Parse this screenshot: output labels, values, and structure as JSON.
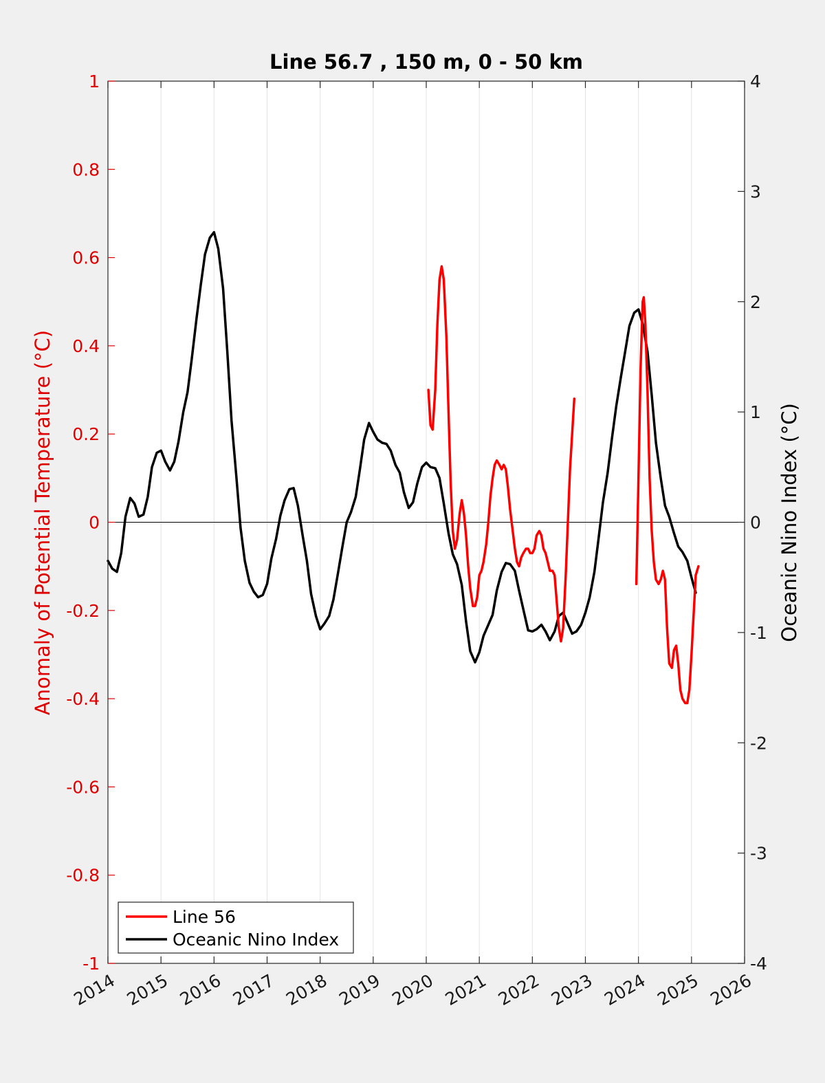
{
  "chart_data": {
    "type": "line",
    "title": "Line 56.7 , 150 m, 0 - 50 km",
    "ylabel_left": "Anomaly of Potential Temperature (°C)",
    "ylabel_right": "Oceanic Nino Index (°C)",
    "xlabel": "",
    "xlim": [
      2014,
      2026
    ],
    "ylim_left": [
      -1,
      1
    ],
    "ylim_right": [
      -4,
      4
    ],
    "x_ticks": [
      "2014",
      "2015",
      "2016",
      "2017",
      "2018",
      "2019",
      "2020",
      "2021",
      "2022",
      "2023",
      "2024",
      "2025",
      "2026"
    ],
    "y_left_ticks": [
      "1",
      "0.8",
      "0.6",
      "0.4",
      "0.2",
      "0",
      "-0.2",
      "-0.4",
      "-0.6",
      "-0.8",
      "-1"
    ],
    "y_right_ticks": [
      "4",
      "3",
      "2",
      "1",
      "0",
      "-1",
      "-2",
      "-3",
      "-4"
    ],
    "grid": "vertical",
    "legend_position": "bottom-left",
    "colors": {
      "line56": "#ff0000",
      "oni": "#000000",
      "left_axis": "#e00000",
      "right_axis": "#000000"
    },
    "series": [
      {
        "name": "Line 56",
        "axis": "left",
        "segments": [
          [
            [
              2020.04,
              0.3
            ],
            [
              2020.08,
              0.22
            ],
            [
              2020.12,
              0.21
            ],
            [
              2020.17,
              0.3
            ],
            [
              2020.21,
              0.45
            ],
            [
              2020.25,
              0.55
            ],
            [
              2020.29,
              0.58
            ],
            [
              2020.33,
              0.55
            ],
            [
              2020.38,
              0.42
            ],
            [
              2020.42,
              0.25
            ],
            [
              2020.46,
              0.09
            ],
            [
              2020.5,
              -0.02
            ],
            [
              2020.54,
              -0.06
            ],
            [
              2020.58,
              -0.04
            ],
            [
              2020.63,
              0.02
            ],
            [
              2020.67,
              0.05
            ],
            [
              2020.71,
              0.02
            ],
            [
              2020.75,
              -0.03
            ],
            [
              2020.79,
              -0.1
            ],
            [
              2020.83,
              -0.15
            ],
            [
              2020.88,
              -0.19
            ],
            [
              2020.92,
              -0.19
            ],
            [
              2020.96,
              -0.17
            ],
            [
              2021.0,
              -0.12
            ],
            [
              2021.04,
              -0.11
            ],
            [
              2021.08,
              -0.09
            ],
            [
              2021.13,
              -0.05
            ],
            [
              2021.17,
              0.0
            ],
            [
              2021.21,
              0.06
            ],
            [
              2021.25,
              0.1
            ],
            [
              2021.29,
              0.13
            ],
            [
              2021.33,
              0.14
            ],
            [
              2021.38,
              0.13
            ],
            [
              2021.42,
              0.12
            ],
            [
              2021.46,
              0.13
            ],
            [
              2021.5,
              0.12
            ],
            [
              2021.54,
              0.08
            ],
            [
              2021.58,
              0.03
            ],
            [
              2021.63,
              -0.02
            ],
            [
              2021.67,
              -0.06
            ],
            [
              2021.71,
              -0.09
            ],
            [
              2021.75,
              -0.1
            ],
            [
              2021.79,
              -0.08
            ],
            [
              2021.83,
              -0.07
            ],
            [
              2021.88,
              -0.06
            ],
            [
              2021.92,
              -0.06
            ],
            [
              2021.96,
              -0.07
            ],
            [
              2022.0,
              -0.07
            ],
            [
              2022.04,
              -0.06
            ],
            [
              2022.08,
              -0.03
            ],
            [
              2022.13,
              -0.02
            ],
            [
              2022.17,
              -0.03
            ],
            [
              2022.21,
              -0.06
            ],
            [
              2022.25,
              -0.07
            ],
            [
              2022.29,
              -0.09
            ],
            [
              2022.33,
              -0.11
            ],
            [
              2022.38,
              -0.11
            ],
            [
              2022.42,
              -0.12
            ],
            [
              2022.46,
              -0.18
            ],
            [
              2022.5,
              -0.24
            ],
            [
              2022.54,
              -0.27
            ],
            [
              2022.58,
              -0.24
            ],
            [
              2022.63,
              -0.12
            ],
            [
              2022.67,
              0.0
            ],
            [
              2022.71,
              0.12
            ],
            [
              2022.75,
              0.2
            ],
            [
              2022.79,
              0.28
            ]
          ],
          [
            [
              2023.96,
              -0.14
            ],
            [
              2024.0,
              0.1
            ],
            [
              2024.04,
              0.35
            ],
            [
              2024.08,
              0.5
            ],
            [
              2024.1,
              0.51
            ],
            [
              2024.13,
              0.45
            ],
            [
              2024.17,
              0.3
            ],
            [
              2024.21,
              0.1
            ],
            [
              2024.25,
              -0.02
            ],
            [
              2024.29,
              -0.09
            ],
            [
              2024.33,
              -0.13
            ],
            [
              2024.38,
              -0.14
            ],
            [
              2024.42,
              -0.13
            ],
            [
              2024.46,
              -0.11
            ],
            [
              2024.5,
              -0.13
            ],
            [
              2024.54,
              -0.24
            ],
            [
              2024.58,
              -0.32
            ],
            [
              2024.63,
              -0.33
            ],
            [
              2024.67,
              -0.29
            ],
            [
              2024.71,
              -0.28
            ],
            [
              2024.75,
              -0.32
            ],
            [
              2024.79,
              -0.38
            ],
            [
              2024.83,
              -0.4
            ],
            [
              2024.88,
              -0.41
            ],
            [
              2024.92,
              -0.41
            ],
            [
              2024.96,
              -0.38
            ],
            [
              2025.0,
              -0.3
            ],
            [
              2025.04,
              -0.21
            ],
            [
              2025.08,
              -0.12
            ],
            [
              2025.13,
              -0.1
            ]
          ]
        ]
      },
      {
        "name": "Oceanic Nino Index",
        "axis": "right",
        "segments": [
          [
            [
              2014.0,
              -0.35
            ],
            [
              2014.08,
              -0.42
            ],
            [
              2014.17,
              -0.45
            ],
            [
              2014.25,
              -0.28
            ],
            [
              2014.33,
              0.05
            ],
            [
              2014.42,
              0.22
            ],
            [
              2014.5,
              0.17
            ],
            [
              2014.58,
              0.05
            ],
            [
              2014.67,
              0.07
            ],
            [
              2014.75,
              0.23
            ],
            [
              2014.83,
              0.5
            ],
            [
              2014.92,
              0.63
            ],
            [
              2015.0,
              0.65
            ],
            [
              2015.08,
              0.55
            ],
            [
              2015.17,
              0.47
            ],
            [
              2015.25,
              0.55
            ],
            [
              2015.33,
              0.73
            ],
            [
              2015.42,
              1.0
            ],
            [
              2015.5,
              1.18
            ],
            [
              2015.58,
              1.48
            ],
            [
              2015.67,
              1.85
            ],
            [
              2015.75,
              2.15
            ],
            [
              2015.83,
              2.43
            ],
            [
              2015.92,
              2.58
            ],
            [
              2016.0,
              2.63
            ],
            [
              2016.08,
              2.48
            ],
            [
              2016.17,
              2.12
            ],
            [
              2016.25,
              1.55
            ],
            [
              2016.33,
              0.92
            ],
            [
              2016.42,
              0.42
            ],
            [
              2016.5,
              -0.05
            ],
            [
              2016.58,
              -0.35
            ],
            [
              2016.67,
              -0.55
            ],
            [
              2016.75,
              -0.63
            ],
            [
              2016.83,
              -0.68
            ],
            [
              2016.92,
              -0.66
            ],
            [
              2017.0,
              -0.56
            ],
            [
              2017.08,
              -0.33
            ],
            [
              2017.17,
              -0.15
            ],
            [
              2017.25,
              0.06
            ],
            [
              2017.33,
              0.2
            ],
            [
              2017.42,
              0.3
            ],
            [
              2017.5,
              0.31
            ],
            [
              2017.58,
              0.15
            ],
            [
              2017.67,
              -0.12
            ],
            [
              2017.75,
              -0.35
            ],
            [
              2017.83,
              -0.65
            ],
            [
              2017.92,
              -0.85
            ],
            [
              2018.0,
              -0.97
            ],
            [
              2018.08,
              -0.92
            ],
            [
              2018.17,
              -0.85
            ],
            [
              2018.25,
              -0.7
            ],
            [
              2018.33,
              -0.48
            ],
            [
              2018.42,
              -0.22
            ],
            [
              2018.5,
              0.0
            ],
            [
              2018.58,
              0.09
            ],
            [
              2018.67,
              0.23
            ],
            [
              2018.75,
              0.48
            ],
            [
              2018.83,
              0.75
            ],
            [
              2018.92,
              0.9
            ],
            [
              2019.0,
              0.82
            ],
            [
              2019.08,
              0.75
            ],
            [
              2019.17,
              0.72
            ],
            [
              2019.25,
              0.71
            ],
            [
              2019.33,
              0.65
            ],
            [
              2019.42,
              0.52
            ],
            [
              2019.5,
              0.45
            ],
            [
              2019.58,
              0.27
            ],
            [
              2019.67,
              0.13
            ],
            [
              2019.75,
              0.18
            ],
            [
              2019.83,
              0.35
            ],
            [
              2019.92,
              0.5
            ],
            [
              2020.0,
              0.54
            ],
            [
              2020.08,
              0.5
            ],
            [
              2020.17,
              0.49
            ],
            [
              2020.25,
              0.4
            ],
            [
              2020.33,
              0.17
            ],
            [
              2020.42,
              -0.1
            ],
            [
              2020.5,
              -0.29
            ],
            [
              2020.58,
              -0.38
            ],
            [
              2020.67,
              -0.57
            ],
            [
              2020.75,
              -0.9
            ],
            [
              2020.83,
              -1.17
            ],
            [
              2020.92,
              -1.27
            ],
            [
              2021.0,
              -1.18
            ],
            [
              2021.08,
              -1.03
            ],
            [
              2021.17,
              -0.93
            ],
            [
              2021.25,
              -0.84
            ],
            [
              2021.33,
              -0.62
            ],
            [
              2021.42,
              -0.45
            ],
            [
              2021.5,
              -0.37
            ],
            [
              2021.58,
              -0.38
            ],
            [
              2021.67,
              -0.44
            ],
            [
              2021.75,
              -0.62
            ],
            [
              2021.83,
              -0.79
            ],
            [
              2021.92,
              -0.98
            ],
            [
              2022.0,
              -0.99
            ],
            [
              2022.08,
              -0.97
            ],
            [
              2022.17,
              -0.93
            ],
            [
              2022.25,
              -0.99
            ],
            [
              2022.33,
              -1.07
            ],
            [
              2022.42,
              -0.99
            ],
            [
              2022.5,
              -0.85
            ],
            [
              2022.58,
              -0.82
            ],
            [
              2022.67,
              -0.92
            ],
            [
              2022.75,
              -1.01
            ],
            [
              2022.83,
              -0.99
            ],
            [
              2022.92,
              -0.93
            ],
            [
              2023.0,
              -0.82
            ],
            [
              2023.08,
              -0.68
            ],
            [
              2023.17,
              -0.45
            ],
            [
              2023.25,
              -0.14
            ],
            [
              2023.33,
              0.18
            ],
            [
              2023.42,
              0.45
            ],
            [
              2023.5,
              0.76
            ],
            [
              2023.58,
              1.05
            ],
            [
              2023.67,
              1.32
            ],
            [
              2023.75,
              1.55
            ],
            [
              2023.83,
              1.78
            ],
            [
              2023.92,
              1.9
            ],
            [
              2024.0,
              1.93
            ],
            [
              2024.08,
              1.8
            ],
            [
              2024.17,
              1.55
            ],
            [
              2024.25,
              1.15
            ],
            [
              2024.33,
              0.72
            ],
            [
              2024.42,
              0.4
            ],
            [
              2024.5,
              0.15
            ],
            [
              2024.58,
              0.05
            ],
            [
              2024.67,
              -0.1
            ],
            [
              2024.75,
              -0.22
            ],
            [
              2024.83,
              -0.27
            ],
            [
              2024.92,
              -0.35
            ],
            [
              2025.0,
              -0.5
            ],
            [
              2025.08,
              -0.64
            ]
          ]
        ]
      }
    ]
  }
}
